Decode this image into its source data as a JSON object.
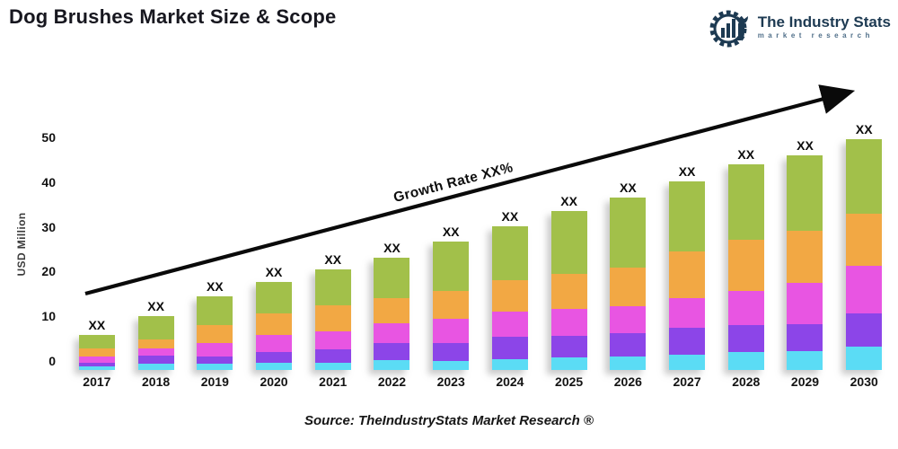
{
  "header": {
    "title": "Dog Brushes Market Size & Scope"
  },
  "logo": {
    "name": "The Industry Stats",
    "tagline": "market research",
    "color": "#1d3a52"
  },
  "chart_data": {
    "type": "bar",
    "subtype": "stacked",
    "ylabel": "USD Million",
    "yticks": [
      0,
      10,
      20,
      30,
      40,
      50
    ],
    "ylim": [
      0,
      55
    ],
    "grid": false,
    "legend": "none",
    "categories": [
      "2017",
      "2018",
      "2019",
      "2020",
      "2021",
      "2022",
      "2023",
      "2024",
      "2025",
      "2026",
      "2027",
      "2028",
      "2029",
      "2030"
    ],
    "bar_value_label": "XX",
    "growth_label": "Growth Rate XX%",
    "series": [
      {
        "name": "segment-1-cyan",
        "color": "#5bdcf5",
        "values": [
          0.8,
          1.5,
          1.5,
          1.7,
          1.7,
          2.2,
          2.1,
          2.4,
          2.8,
          3.1,
          3.4,
          4.0,
          4.3,
          5.2
        ]
      },
      {
        "name": "segment-2-purple",
        "color": "#8c45e8",
        "values": [
          0.9,
          1.7,
          1.6,
          2.3,
          3.0,
          3.9,
          3.9,
          5.0,
          4.9,
          5.1,
          6.0,
          6.0,
          5.9,
          7.5
        ]
      },
      {
        "name": "segment-3-magenta",
        "color": "#e855e2",
        "values": [
          1.3,
          1.7,
          3.0,
          3.9,
          4.0,
          4.3,
          5.5,
          5.6,
          6.0,
          6.0,
          6.7,
          7.7,
          9.3,
          10.5
        ]
      },
      {
        "name": "segment-4-orange",
        "color": "#f2a844",
        "values": [
          1.8,
          1.9,
          3.9,
          4.8,
          5.8,
          5.7,
          6.2,
          7.0,
          7.8,
          8.7,
          10.3,
          11.3,
          11.5,
          11.7
        ]
      },
      {
        "name": "segment-5-green",
        "color": "#a2c04a",
        "values": [
          3.0,
          5.2,
          6.4,
          7.0,
          7.9,
          9.0,
          11.0,
          12.0,
          14.0,
          15.5,
          15.7,
          16.9,
          16.9,
          16.5
        ]
      }
    ],
    "totals": [
      7.8,
      12.0,
      16.4,
      19.7,
      22.4,
      25.1,
      28.7,
      32.0,
      35.5,
      38.4,
      42.1,
      45.9,
      47.9,
      51.4
    ]
  },
  "footer": {
    "source": "Source: TheIndustryStats Market Research ®"
  }
}
